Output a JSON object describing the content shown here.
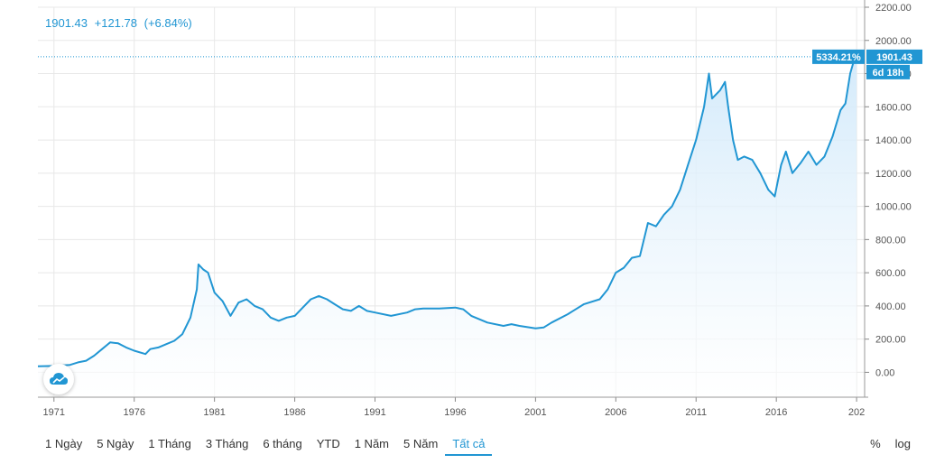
{
  "header": {
    "price": "1901.43",
    "change": "+121.78",
    "change_pct": "(+6.84%)"
  },
  "tags": {
    "percent": "5334.21%",
    "price": "1901.43",
    "countdown": "6d 18h"
  },
  "range_buttons": [
    "1 Ngày",
    "5 Ngày",
    "1 Tháng",
    "3 Tháng",
    "6 tháng",
    "YTD",
    "1 Năm",
    "5 Năm",
    "Tất cả"
  ],
  "active_range": "Tất cả",
  "scale_buttons": [
    "%",
    "log"
  ],
  "colors": {
    "line": "#2196d3",
    "fill_top": "#cfe8fa",
    "tag": "#2196d3",
    "grid": "#e8e8e8"
  },
  "icons": {
    "logo": "cloud-icon"
  },
  "chart_data": {
    "type": "area",
    "title": "",
    "xlabel": "",
    "ylabel": "",
    "x_ticks": [
      "1971",
      "1976",
      "1981",
      "1986",
      "1991",
      "1996",
      "2001",
      "2006",
      "2011",
      "2016",
      "202"
    ],
    "y_ticks": [
      "0.00",
      "200.00",
      "400.00",
      "600.00",
      "800.00",
      "1000.00",
      "1200.00",
      "1400.00",
      "1600.00",
      "1800.00",
      "2000.00",
      "2200.00"
    ],
    "xlim": [
      1970.0,
      2021.5
    ],
    "ylim": [
      -150,
      2200
    ],
    "grid": true,
    "y_axis_position": "right",
    "series": [
      {
        "x": [
          1970.0,
          1971.0,
          1972.0,
          1972.5,
          1973.0,
          1973.5,
          1974.0,
          1974.5,
          1975.0,
          1975.5,
          1976.0,
          1976.7,
          1977.0,
          1977.5,
          1978.0,
          1978.5,
          1979.0,
          1979.5,
          1979.9,
          1980.0,
          1980.3,
          1980.6,
          1981.0,
          1981.5,
          1982.0,
          1982.5,
          1983.0,
          1983.5,
          1984.0,
          1984.5,
          1985.0,
          1985.5,
          1986.0,
          1986.5,
          1987.0,
          1987.5,
          1988.0,
          1988.5,
          1989.0,
          1989.5,
          1990.0,
          1990.5,
          1991.0,
          1992.0,
          1993.0,
          1993.5,
          1994.0,
          1995.0,
          1996.0,
          1996.5,
          1997.0,
          1998.0,
          1999.0,
          1999.5,
          2000.0,
          2001.0,
          2001.5,
          2002.0,
          2003.0,
          2004.0,
          2005.0,
          2005.5,
          2006.0,
          2006.5,
          2007.0,
          2007.5,
          2008.0,
          2008.5,
          2009.0,
          2009.5,
          2010.0,
          2010.5,
          2011.0,
          2011.5,
          2011.8,
          2012.0,
          2012.5,
          2012.8,
          2013.0,
          2013.3,
          2013.6,
          2014.0,
          2014.5,
          2015.0,
          2015.5,
          2015.9,
          2016.3,
          2016.6,
          2017.0,
          2017.5,
          2018.0,
          2018.5,
          2019.0,
          2019.5,
          2020.0,
          2020.3,
          2020.6,
          2020.9,
          2021.0
        ],
        "values": [
          36,
          38,
          45,
          60,
          70,
          100,
          140,
          180,
          175,
          150,
          130,
          110,
          140,
          150,
          170,
          190,
          230,
          330,
          500,
          650,
          620,
          600,
          480,
          430,
          340,
          420,
          440,
          400,
          380,
          330,
          310,
          330,
          340,
          390,
          440,
          460,
          440,
          410,
          380,
          370,
          400,
          370,
          360,
          340,
          360,
          380,
          385,
          385,
          390,
          380,
          340,
          300,
          280,
          290,
          280,
          265,
          270,
          300,
          350,
          410,
          440,
          500,
          600,
          630,
          690,
          700,
          900,
          880,
          950,
          1000,
          1100,
          1250,
          1400,
          1600,
          1800,
          1650,
          1700,
          1750,
          1600,
          1400,
          1280,
          1300,
          1280,
          1200,
          1100,
          1060,
          1250,
          1330,
          1200,
          1260,
          1330,
          1250,
          1300,
          1420,
          1580,
          1620,
          1800,
          1900,
          1901.43
        ]
      }
    ]
  }
}
